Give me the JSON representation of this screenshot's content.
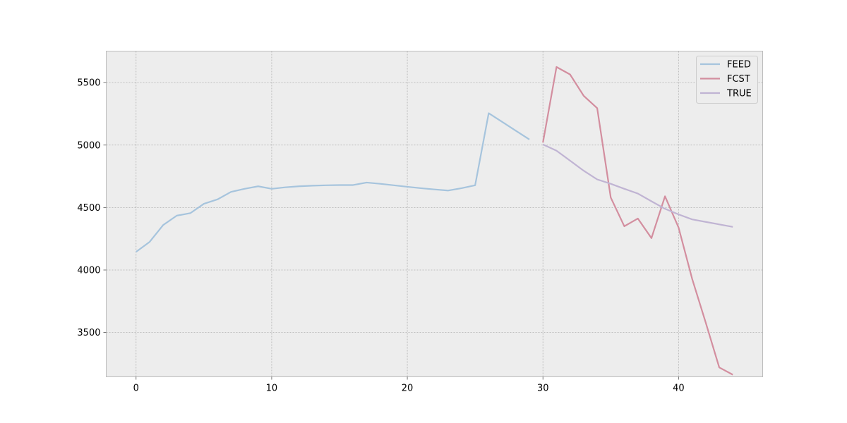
{
  "chart_data": {
    "type": "line",
    "title": "",
    "xlabel": "",
    "ylabel": "",
    "xlim": [
      -2.2,
      46.2
    ],
    "ylim": [
      3145,
      5752
    ],
    "xticks": [
      0,
      10,
      20,
      30,
      40
    ],
    "yticks": [
      3500,
      4000,
      4500,
      5000,
      5500
    ],
    "grid": true,
    "legend_position": "top-right",
    "series": [
      {
        "name": "FEED",
        "color": "#a6c4dd",
        "x": [
          0,
          1,
          2,
          3,
          4,
          5,
          6,
          7,
          8,
          9,
          10,
          11,
          12,
          13,
          14,
          15,
          16,
          17,
          18,
          19,
          20,
          21,
          22,
          23,
          24,
          25,
          26,
          27,
          28,
          29
        ],
        "y": [
          4145,
          4225,
          4360,
          4435,
          4455,
          4530,
          4565,
          4625,
          4650,
          4670,
          4650,
          4662,
          4670,
          4675,
          4678,
          4680,
          4680,
          4700,
          4690,
          4678,
          4666,
          4655,
          4645,
          4636,
          4655,
          4678,
          5255,
          5185,
          5115,
          5045
        ]
      },
      {
        "name": "FCST",
        "color": "#d38e9f",
        "x": [
          30,
          31,
          32,
          33,
          34,
          35,
          36,
          37,
          38,
          39,
          40,
          41,
          42,
          43,
          44
        ],
        "y": [
          5020,
          5625,
          5565,
          5395,
          5295,
          4580,
          4350,
          4412,
          4255,
          4590,
          4340,
          3930,
          3580,
          3220,
          3162
        ]
      },
      {
        "name": "TRUE",
        "color": "#c0b4d3",
        "x": [
          30,
          31,
          32,
          33,
          34,
          35,
          36,
          37,
          38,
          39,
          40,
          41,
          42,
          43,
          44
        ],
        "y": [
          5005,
          4955,
          4875,
          4795,
          4725,
          4690,
          4650,
          4612,
          4550,
          4490,
          4445,
          4405,
          4385,
          4365,
          4345
        ]
      }
    ]
  }
}
